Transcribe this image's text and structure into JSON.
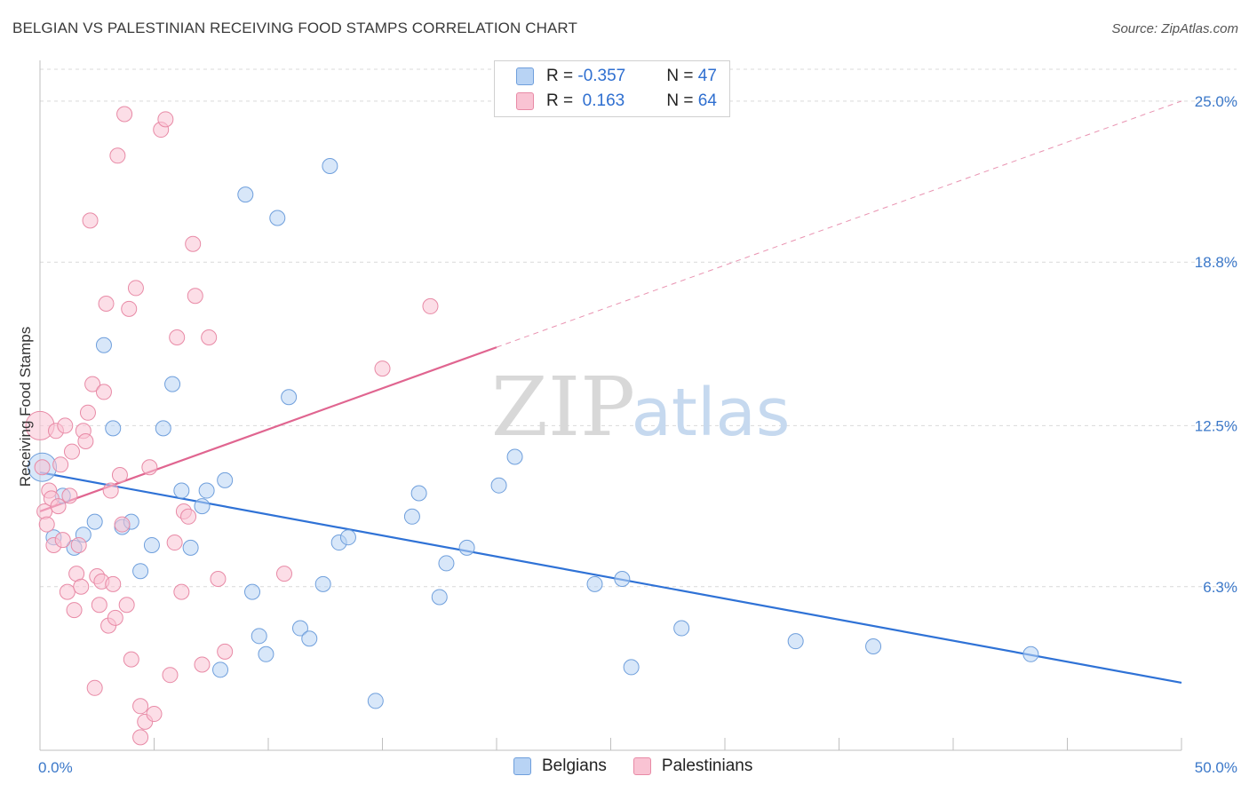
{
  "header": {
    "title": "BELGIAN VS PALESTINIAN RECEIVING FOOD STAMPS CORRELATION CHART",
    "source": "Source: ZipAtlas.com"
  },
  "legend": {
    "rows": [
      {
        "r_label": "R = ",
        "r_value": "-0.357",
        "n_label": "N = ",
        "n_value": "47"
      },
      {
        "r_label": "R = ",
        "r_value": " 0.163",
        "n_label": "N = ",
        "n_value": "64"
      }
    ]
  },
  "bottom_legend": {
    "items": [
      "Belgians",
      "Palestinians"
    ]
  },
  "watermark": {
    "zip": "ZIP",
    "atlas": "atlas"
  },
  "colors": {
    "belgians_fill": "#b8d3f4",
    "belgians_stroke": "#6f9fdc",
    "belgians_line": "#2f72d6",
    "palestinians_fill": "#f9c3d3",
    "palestinians_stroke": "#e88aa6",
    "palestinians_line": "#e06590",
    "tick_text": "#3b78c9",
    "grid": "#d9d9d9"
  },
  "chart_data": {
    "type": "scatter",
    "ylabel": "Receiving Food Stamps",
    "xlabel": "",
    "xlim": [
      0,
      50
    ],
    "ylim": [
      0,
      26.5
    ],
    "x_ticks": [
      {
        "value": 0,
        "label": "0.0%"
      },
      {
        "value": 50,
        "label": "50.0%"
      }
    ],
    "y_ticks": [
      {
        "value": 6.3,
        "label": "6.3%"
      },
      {
        "value": 12.5,
        "label": "12.5%"
      },
      {
        "value": 18.8,
        "label": "18.8%"
      },
      {
        "value": 25.0,
        "label": "25.0%"
      }
    ],
    "grid": true,
    "series": [
      {
        "name": "Belgians",
        "r": -0.357,
        "n": 47,
        "trend": {
          "x0": 0,
          "y0": 10.7,
          "x1": 50,
          "y1": 2.6,
          "solid_to": 50
        },
        "points": [
          [
            0.1,
            10.9,
            "large"
          ],
          [
            0.6,
            8.2
          ],
          [
            1.0,
            9.8
          ],
          [
            1.5,
            7.8
          ],
          [
            1.9,
            8.3
          ],
          [
            2.4,
            8.8
          ],
          [
            2.8,
            15.6
          ],
          [
            3.2,
            12.4
          ],
          [
            3.6,
            8.6
          ],
          [
            4.0,
            8.8
          ],
          [
            4.4,
            6.9
          ],
          [
            4.9,
            7.9
          ],
          [
            5.4,
            12.4
          ],
          [
            5.8,
            14.1
          ],
          [
            6.2,
            10.0
          ],
          [
            6.6,
            7.8
          ],
          [
            7.1,
            9.4
          ],
          [
            7.3,
            10.0
          ],
          [
            7.9,
            3.1
          ],
          [
            8.1,
            10.4
          ],
          [
            9.0,
            21.4
          ],
          [
            9.3,
            6.1
          ],
          [
            9.6,
            4.4
          ],
          [
            9.9,
            3.7
          ],
          [
            10.4,
            20.5
          ],
          [
            10.9,
            13.6
          ],
          [
            11.4,
            4.7
          ],
          [
            11.8,
            4.3
          ],
          [
            12.4,
            6.4
          ],
          [
            12.7,
            22.5
          ],
          [
            13.1,
            8.0
          ],
          [
            13.5,
            8.2
          ],
          [
            14.7,
            1.9
          ],
          [
            16.3,
            9.0
          ],
          [
            16.6,
            9.9
          ],
          [
            17.5,
            5.9
          ],
          [
            17.8,
            7.2
          ],
          [
            18.7,
            7.8
          ],
          [
            20.1,
            10.2
          ],
          [
            20.8,
            11.3
          ],
          [
            24.3,
            6.4
          ],
          [
            25.5,
            6.6
          ],
          [
            25.9,
            3.2
          ],
          [
            28.1,
            4.7
          ],
          [
            33.1,
            4.2
          ],
          [
            36.5,
            4.0
          ],
          [
            43.4,
            3.7
          ]
        ]
      },
      {
        "name": "Palestinians",
        "r": 0.163,
        "n": 64,
        "trend": {
          "x0": 0,
          "y0": 9.2,
          "x1": 50,
          "y1": 25.0,
          "solid_to": 20
        },
        "points": [
          [
            0.0,
            12.5,
            "large"
          ],
          [
            0.1,
            10.9
          ],
          [
            0.2,
            9.2
          ],
          [
            0.3,
            8.7
          ],
          [
            0.4,
            10.0
          ],
          [
            0.5,
            9.7
          ],
          [
            0.6,
            7.9
          ],
          [
            0.7,
            12.3
          ],
          [
            0.8,
            9.4
          ],
          [
            0.9,
            11.0
          ],
          [
            1.0,
            8.1
          ],
          [
            1.1,
            12.5
          ],
          [
            1.2,
            6.1
          ],
          [
            1.3,
            9.8
          ],
          [
            1.4,
            11.5
          ],
          [
            1.5,
            5.4
          ],
          [
            1.6,
            6.8
          ],
          [
            1.7,
            7.9
          ],
          [
            1.8,
            6.3
          ],
          [
            1.9,
            12.3
          ],
          [
            2.0,
            11.9
          ],
          [
            2.1,
            13.0
          ],
          [
            2.2,
            20.4
          ],
          [
            2.3,
            14.1
          ],
          [
            2.4,
            2.4
          ],
          [
            2.5,
            6.7
          ],
          [
            2.6,
            5.6
          ],
          [
            2.7,
            6.5
          ],
          [
            2.8,
            13.8
          ],
          [
            2.9,
            17.2
          ],
          [
            3.0,
            4.8
          ],
          [
            3.1,
            10.0
          ],
          [
            3.2,
            6.4
          ],
          [
            3.3,
            5.1
          ],
          [
            3.4,
            22.9
          ],
          [
            3.5,
            10.6
          ],
          [
            3.6,
            8.7
          ],
          [
            3.7,
            24.5
          ],
          [
            3.8,
            5.6
          ],
          [
            3.9,
            17.0
          ],
          [
            4.0,
            3.5
          ],
          [
            4.2,
            17.8
          ],
          [
            4.4,
            1.7
          ],
          [
            4.6,
            1.1
          ],
          [
            4.8,
            10.9
          ],
          [
            5.0,
            1.4
          ],
          [
            5.3,
            23.9
          ],
          [
            5.5,
            24.3
          ],
          [
            5.7,
            2.9
          ],
          [
            5.9,
            8.0
          ],
          [
            6.0,
            15.9
          ],
          [
            6.2,
            6.1
          ],
          [
            6.3,
            9.2
          ],
          [
            6.5,
            9.0
          ],
          [
            6.7,
            19.5
          ],
          [
            6.8,
            17.5
          ],
          [
            7.1,
            3.3
          ],
          [
            7.4,
            15.9
          ],
          [
            7.8,
            6.6
          ],
          [
            8.1,
            3.8
          ],
          [
            10.7,
            6.8
          ],
          [
            15.0,
            14.7
          ],
          [
            17.1,
            17.1
          ],
          [
            4.4,
            0.5
          ]
        ]
      }
    ]
  }
}
